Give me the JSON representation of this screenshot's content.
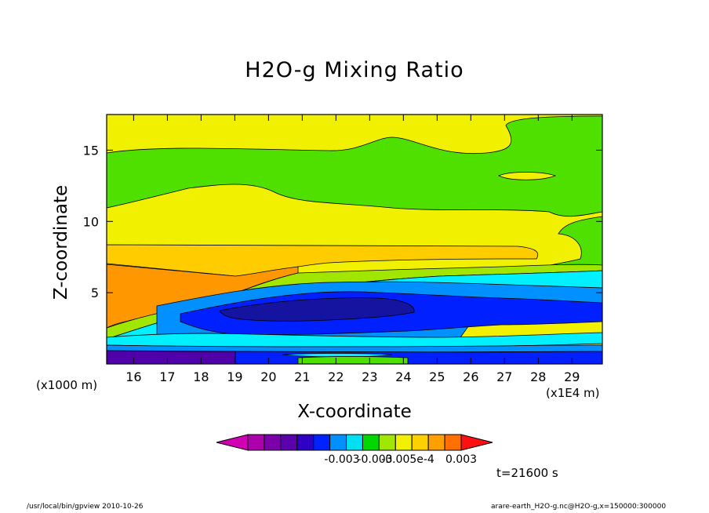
{
  "chart_data": {
    "type": "heatmap",
    "title": "H2O-g Mixing Ratio",
    "xlabel": "X-coordinate",
    "ylabel": "Z-coordinate",
    "x_unit_left": "(x1000 m)",
    "x_unit_right": "(x1E4 m)",
    "xlim": [
      15.2,
      29.9
    ],
    "ylim": [
      0,
      17.5
    ],
    "xticks": [
      "16",
      "17",
      "18",
      "19",
      "20",
      "21",
      "22",
      "23",
      "24",
      "25",
      "26",
      "27",
      "28",
      "29"
    ],
    "xtick_values": [
      16,
      17,
      18,
      19,
      20,
      21,
      22,
      23,
      24,
      25,
      26,
      27,
      28,
      29
    ],
    "yticks": [
      "5",
      "10",
      "15"
    ],
    "ytick_values": [
      5,
      10,
      15
    ],
    "colorbar": {
      "colors": [
        "#d100b4",
        "#ad00ad",
        "#7b00a9",
        "#5a00ad",
        "#2f00c4",
        "#0022ff",
        "#0090ff",
        "#00e0f0",
        "#00d800",
        "#a0e600",
        "#f0f000",
        "#ffd000",
        "#ffa000",
        "#ff7000",
        "#ff1010"
      ],
      "labels": [
        "-0.003",
        "-0.003",
        "-0.005e-4",
        "0.003"
      ]
    },
    "regions": [
      {
        "name": "top-yellow",
        "color": "#f0f000"
      },
      {
        "name": "upper-green",
        "color": "#50e000"
      },
      {
        "name": "middle-yellow",
        "color": "#f0f000"
      },
      {
        "name": "gold-band",
        "color": "#ffcc00"
      },
      {
        "name": "orange",
        "color": "#ff9800"
      },
      {
        "name": "lightgreen",
        "color": "#a0e600"
      },
      {
        "name": "cyan",
        "color": "#00f0ff"
      },
      {
        "name": "lightblue",
        "color": "#0090ff"
      },
      {
        "name": "blue",
        "color": "#0020ff"
      },
      {
        "name": "navy",
        "color": "#1414a0"
      },
      {
        "name": "purple",
        "color": "#5000a8"
      }
    ],
    "time_label": "t=21600 s"
  },
  "footer": {
    "left": "/usr/local/bin/gpview  2010-10-26",
    "right": "arare-earth_H2O-g.nc@H2O-g,x=150000:300000"
  }
}
